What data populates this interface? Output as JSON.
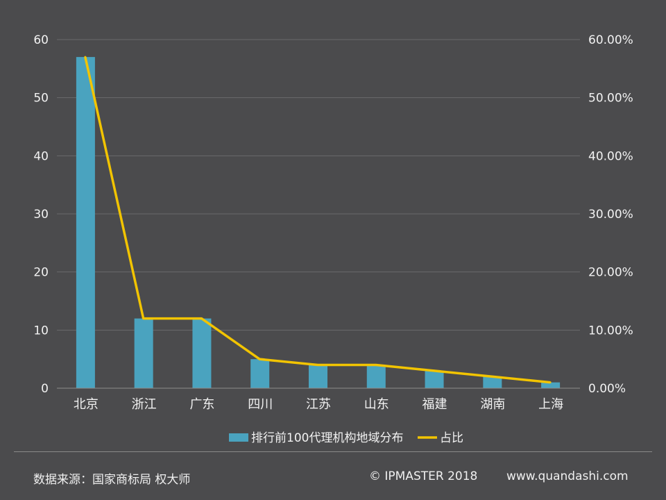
{
  "chart_data": {
    "type": "bar",
    "categories": [
      "北京",
      "浙江",
      "广东",
      "四川",
      "江苏",
      "山东",
      "福建",
      "湖南",
      "上海"
    ],
    "series": [
      {
        "name": "排行前100代理机构地域分布",
        "type": "bar",
        "axis": "left",
        "color": "#4aa3bf",
        "values": [
          57,
          12,
          12,
          5,
          4,
          4,
          3,
          2,
          1
        ]
      },
      {
        "name": "占比",
        "type": "line",
        "axis": "right",
        "color": "#f2c400",
        "values": [
          0.57,
          0.12,
          0.12,
          0.05,
          0.04,
          0.04,
          0.03,
          0.02,
          0.01
        ]
      }
    ],
    "y_left": {
      "min": 0,
      "max": 60,
      "ticks": [
        0,
        10,
        20,
        30,
        40,
        50,
        60
      ]
    },
    "y_right": {
      "min": 0,
      "max": 0.6,
      "ticks": [
        "0.00%",
        "10.00%",
        "20.00%",
        "30.00%",
        "40.00%",
        "50.00%",
        "60.00%"
      ]
    },
    "grid": true,
    "legend_position": "bottom"
  },
  "footer": {
    "source": "数据来源：国家商标局  权大师",
    "copyright": "© IPMASTER  2018",
    "website": "www.quandashi.com"
  }
}
